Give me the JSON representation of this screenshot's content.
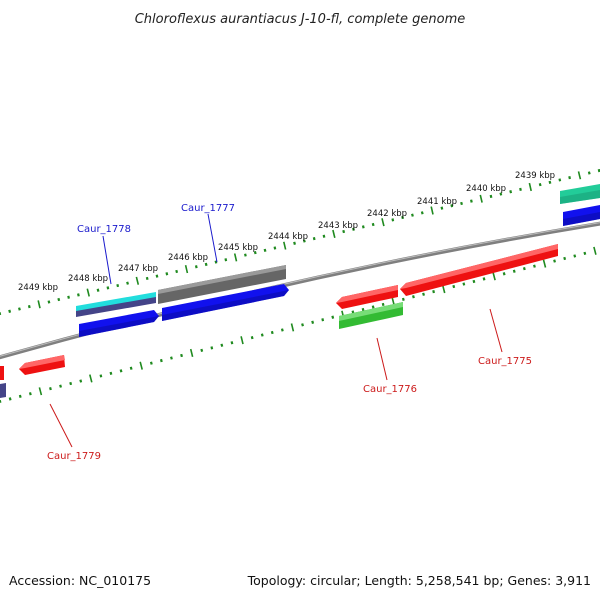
{
  "title": "Chloroflexus aurantiacus J-10-fl, complete genome",
  "footer": {
    "accession": "Accession: NC_010175",
    "summary": "Topology: circular; Length: 5,258,541 bp; Genes: 3,911"
  },
  "ticks": [
    "2439 kbp",
    "2440 kbp",
    "2441 kbp",
    "2442 kbp",
    "2443 kbp",
    "2444 kbp",
    "2445 kbp",
    "2446 kbp",
    "2447 kbp",
    "2448 kbp",
    "2449 kbp"
  ],
  "gene_labels": [
    {
      "id": "Caur_1775",
      "text": "Caur_1775",
      "strand": "minus"
    },
    {
      "id": "Caur_1776",
      "text": "Caur_1776",
      "strand": "minus"
    },
    {
      "id": "Caur_1777",
      "text": "Caur_1777",
      "strand": "plus"
    },
    {
      "id": "Caur_1778",
      "text": "Caur_1778",
      "strand": "plus"
    },
    {
      "id": "Caur_1779",
      "text": "Caur_1779",
      "strand": "minus"
    }
  ],
  "colors": {
    "backbone": "#808080",
    "ruler": "#1f8a1f",
    "plus_label": "#1a1acc",
    "minus_label": "#cc1a1a",
    "gene_red": "#ee1111",
    "gene_blue": "#1111ee",
    "gene_green": "#33bb33",
    "gene_gray": "#666666",
    "gene_cyan": "#22dddd",
    "gene_teal": "#22cc99",
    "gene_navy": "#444488"
  }
}
